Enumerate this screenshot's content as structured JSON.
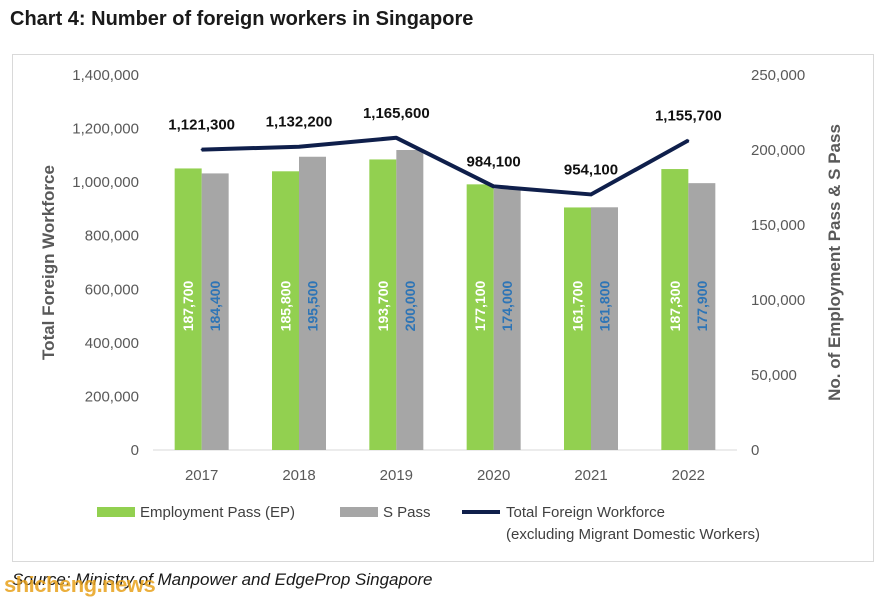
{
  "title": "Chart 4: Number of foreign workers in Singapore",
  "source": "Source: Ministry of Manpower and EdgeProp Singapore",
  "watermark": "shicheng.news",
  "colors": {
    "ep": "#92d050",
    "spass": "#a6a6a6",
    "total": "#0f1f4b",
    "ep_label": "#ffffff",
    "spass_label": "#2e75b6"
  },
  "chart_data": {
    "type": "bar",
    "categories": [
      "2017",
      "2018",
      "2019",
      "2020",
      "2021",
      "2022"
    ],
    "series": [
      {
        "name": "Employment Pass (EP)",
        "axis": "right",
        "kind": "bar",
        "values": [
          187700,
          185800,
          193700,
          177100,
          161700,
          187300
        ],
        "labels": [
          "187,700",
          "185,800",
          "193,700",
          "177,100",
          "161,700",
          "187,300"
        ]
      },
      {
        "name": "S Pass",
        "axis": "right",
        "kind": "bar",
        "values": [
          184400,
          195500,
          200000,
          174000,
          161800,
          177900
        ],
        "labels": [
          "184,400",
          "195,500",
          "200,000",
          "174,000",
          "161,800",
          "177,900"
        ]
      },
      {
        "name": "Total Foreign Workforce",
        "name_line2": "(excluding Migrant Domestic Workers)",
        "axis": "left",
        "kind": "line",
        "values": [
          1121300,
          1132200,
          1165600,
          984100,
          954100,
          1155700
        ],
        "labels": [
          "1,121,300",
          "1,132,200",
          "1,165,600",
          "984,100",
          "954,100",
          "1,155,700"
        ]
      }
    ],
    "y_left": {
      "label": "Total Foreign Workforce",
      "lim": [
        0,
        1400000
      ],
      "ticks": [
        0,
        200000,
        400000,
        600000,
        800000,
        1000000,
        1200000,
        1400000
      ],
      "tick_labels": [
        "0",
        "200,000",
        "400,000",
        "600,000",
        "800,000",
        "1,000,000",
        "1,200,000",
        "1,400,000"
      ]
    },
    "y_right": {
      "label": "No. of Employment Pass & S Pass",
      "lim": [
        0,
        250000
      ],
      "ticks": [
        0,
        50000,
        100000,
        150000,
        200000,
        250000
      ],
      "tick_labels": [
        "0",
        "50,000",
        "100,000",
        "150,000",
        "200,000",
        "250,000"
      ]
    },
    "grid": false,
    "legend": "bottom"
  }
}
